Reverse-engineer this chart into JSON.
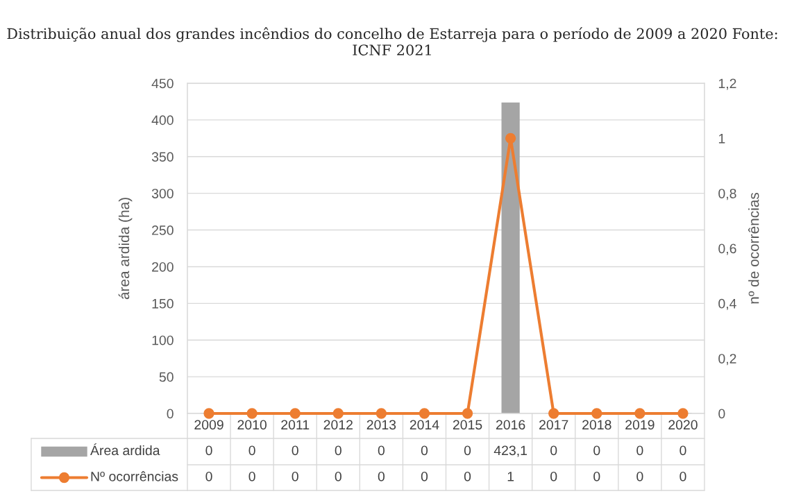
{
  "chart_data": {
    "type": "bar",
    "title": "Distribuição anual dos grandes incêndios do concelho de Estarreja para o período de 2009 a 2020 Fonte: ICNF 2021",
    "ylabel": "área ardida (ha)",
    "y2label": "nº de ocorrências",
    "categories": [
      "2009",
      "2010",
      "2011",
      "2012",
      "2013",
      "2014",
      "2015",
      "2016",
      "2017",
      "2018",
      "2019",
      "2020"
    ],
    "series": [
      {
        "name": "Área ardida",
        "color": "#a5a5a5",
        "values": [
          0,
          0,
          0,
          0,
          0,
          0,
          0,
          423.1,
          0,
          0,
          0,
          0
        ],
        "value_labels": [
          "0",
          "0",
          "0",
          "0",
          "0",
          "0",
          "0",
          "423,1",
          "0",
          "0",
          "0",
          "0"
        ]
      },
      {
        "name": "Nº ocorrências",
        "type": "line",
        "axis": "y2",
        "color": "#ed7d31",
        "marker": "circle",
        "values": [
          0,
          0,
          0,
          0,
          0,
          0,
          0,
          1,
          0,
          0,
          0,
          0
        ],
        "value_labels": [
          "0",
          "0",
          "0",
          "0",
          "0",
          "0",
          "0",
          "1",
          "0",
          "0",
          "0",
          "0"
        ]
      }
    ],
    "ylim": [
      0,
      450
    ],
    "yticks": [
      0,
      50,
      100,
      150,
      200,
      250,
      300,
      350,
      400,
      450
    ],
    "y2lim": [
      0,
      1.2
    ],
    "y2ticks": [
      0,
      {
        "value": 0.2,
        "label": "0,2"
      },
      {
        "value": 0.4,
        "label": "0,4"
      },
      {
        "value": 0.6,
        "label": "0,6"
      },
      {
        "value": 0.8,
        "label": "0,8"
      },
      1,
      {
        "value": 1.2,
        "label": "1,2"
      }
    ],
    "grid": "y",
    "legend": "bottom"
  }
}
